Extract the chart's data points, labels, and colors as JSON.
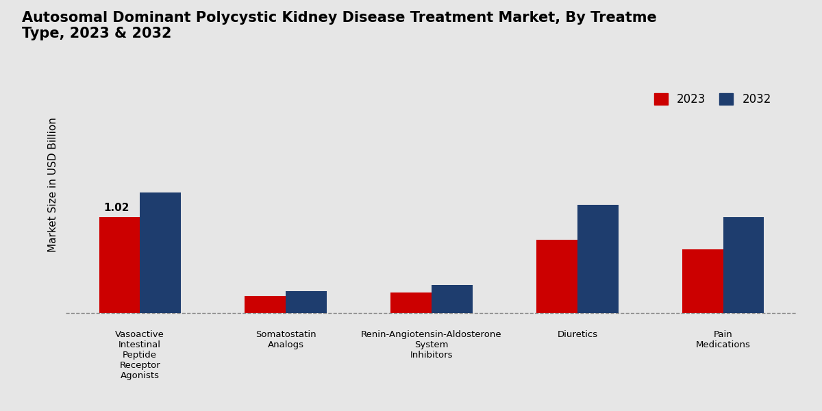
{
  "title": "Autosomal Dominant Polycystic Kidney Disease Treatment Market, By Treatme\nType, 2023 & 2032",
  "ylabel": "Market Size in USD Billion",
  "categories": [
    "Vasoactive\nIntestinal\nPeptide\nReceptor\nAgonists",
    "Somatostatin\nAnalogs",
    "Renin-Angiotensin-Aldosterone\nSystem\nInhibitors",
    "Diuretics",
    "Pain\nMedications"
  ],
  "values_2023": [
    1.02,
    0.18,
    0.22,
    0.78,
    0.68
  ],
  "values_2032": [
    1.28,
    0.23,
    0.3,
    1.15,
    1.02
  ],
  "color_2023": "#cc0000",
  "color_2032": "#1e3d6e",
  "bar_annotation": "1.02",
  "bar_annotation_index": 0,
  "background_color": "#e6e6e6",
  "legend_labels": [
    "2023",
    "2032"
  ],
  "title_fontsize": 15,
  "ylabel_fontsize": 11,
  "bar_width": 0.28,
  "ylim_max": 2.8
}
